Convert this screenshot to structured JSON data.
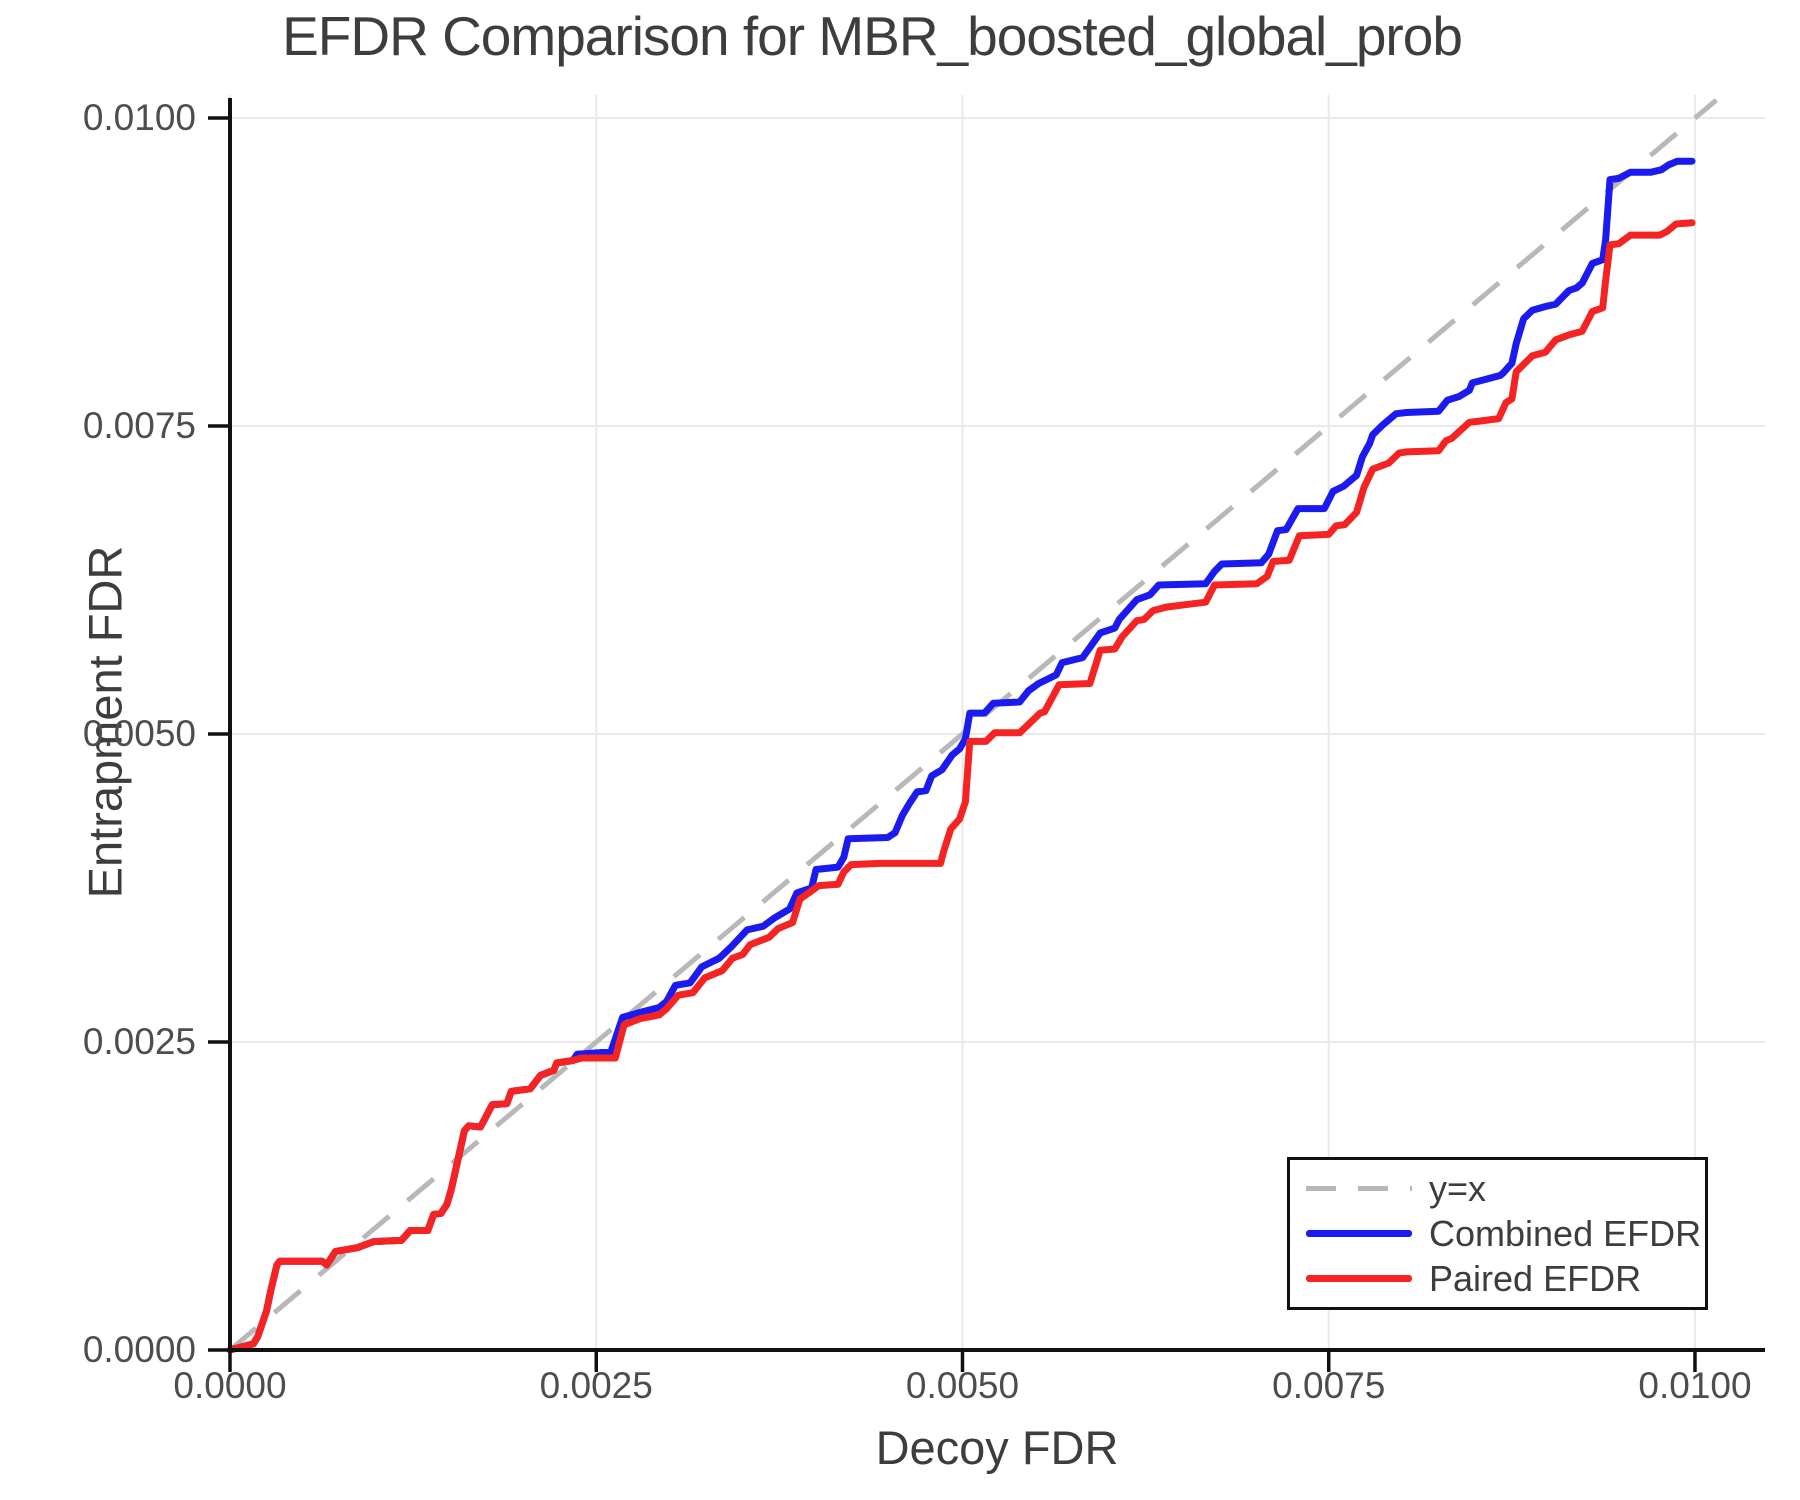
{
  "title": "EFDR Comparison for MBR_boosted_global_prob",
  "colors": {
    "background": "#ffffff",
    "grid": "#e9e9e9",
    "spine": "#111111",
    "title_text": "#3d3d3d",
    "tick_text": "#4d4d4d",
    "reference": "#b8b8b8",
    "combined": "#1b1bef",
    "paired": "#f62323"
  },
  "chart_data": {
    "type": "line",
    "title": "EFDR Comparison for MBR_boosted_global_prob",
    "xlabel": "Decoy FDR",
    "ylabel": "Entrapment FDR",
    "xlim": [
      0,
      0.010478
    ],
    "ylim": [
      0,
      0.010187
    ],
    "grid": true,
    "legend_position": "bottom-right",
    "x_ticks": {
      "values": [
        0,
        0.0025,
        0.005,
        0.0075,
        0.01
      ],
      "labels": [
        "0.0000",
        "0.0025",
        "0.0050",
        "0.0075",
        "0.0100"
      ]
    },
    "y_ticks": {
      "values": [
        0,
        0.0025,
        0.005,
        0.0075,
        0.01
      ],
      "labels": [
        "0.0000",
        "0.0025",
        "0.0050",
        "0.0075",
        "0.0100"
      ]
    },
    "reference_line": {
      "label": "y=x",
      "style": "dashed",
      "color": "#b8b8b8",
      "from": [
        0,
        0
      ],
      "to": [
        0.010146,
        0.010146
      ]
    },
    "legend": [
      {
        "label": "y=x",
        "color": "#b8b8b8",
        "dash": true
      },
      {
        "label": "Combined EFDR",
        "color": "#1b1bef",
        "dash": false
      },
      {
        "label": "Paired EFDR",
        "color": "#f62323",
        "dash": false
      }
    ],
    "series": [
      {
        "name": "Combined EFDR",
        "color": "#1b1bef",
        "points": [
          [
            0.0,
            0.0
          ],
          [
            0.00016,
            5e-05
          ],
          [
            0.00019,
            0.00011
          ],
          [
            0.00025,
            0.00032
          ],
          [
            0.00028,
            0.00049
          ],
          [
            0.00032,
            0.00069
          ],
          [
            0.00034,
            0.00072
          ],
          [
            0.00063,
            0.00072
          ],
          [
            0.00066,
            0.00069
          ],
          [
            0.00072,
            0.0008
          ],
          [
            0.00087,
            0.00083
          ],
          [
            0.00098,
            0.00088
          ],
          [
            0.00117,
            0.00089
          ],
          [
            0.00123,
            0.00097
          ],
          [
            0.00135,
            0.00097
          ],
          [
            0.00139,
            0.0011
          ],
          [
            0.00144,
            0.00111
          ],
          [
            0.00148,
            0.00118
          ],
          [
            0.00151,
            0.0013
          ],
          [
            0.0016,
            0.00178
          ],
          [
            0.00163,
            0.00182
          ],
          [
            0.00171,
            0.00181
          ],
          [
            0.00175,
            0.0019
          ],
          [
            0.00179,
            0.00199
          ],
          [
            0.00189,
            0.002
          ],
          [
            0.00192,
            0.0021
          ],
          [
            0.00205,
            0.00212
          ],
          [
            0.00212,
            0.00223
          ],
          [
            0.00221,
            0.00227
          ],
          [
            0.00223,
            0.00233
          ],
          [
            0.00234,
            0.00235
          ],
          [
            0.00237,
            0.0024
          ],
          [
            0.0026,
            0.00242
          ],
          [
            0.00268,
            0.0027
          ],
          [
            0.0028,
            0.00274
          ],
          [
            0.00293,
            0.00278
          ],
          [
            0.00298,
            0.00283
          ],
          [
            0.00304,
            0.00296
          ],
          [
            0.00314,
            0.00298
          ],
          [
            0.00322,
            0.00311
          ],
          [
            0.00334,
            0.00318
          ],
          [
            0.00342,
            0.00327
          ],
          [
            0.00353,
            0.00341
          ],
          [
            0.00364,
            0.00344
          ],
          [
            0.00372,
            0.00351
          ],
          [
            0.00382,
            0.00358
          ],
          [
            0.00387,
            0.00371
          ],
          [
            0.00397,
            0.00375
          ],
          [
            0.004,
            0.0039
          ],
          [
            0.00415,
            0.00392
          ],
          [
            0.00419,
            0.004
          ],
          [
            0.00422,
            0.00415
          ],
          [
            0.00449,
            0.00416
          ],
          [
            0.00454,
            0.0042
          ],
          [
            0.00459,
            0.00434
          ],
          [
            0.00464,
            0.00444
          ],
          [
            0.00469,
            0.00453
          ],
          [
            0.00475,
            0.00454
          ],
          [
            0.00479,
            0.00466
          ],
          [
            0.00486,
            0.00471
          ],
          [
            0.00493,
            0.00483
          ],
          [
            0.00498,
            0.00488
          ],
          [
            0.00502,
            0.00496
          ],
          [
            0.00505,
            0.00517
          ],
          [
            0.00515,
            0.00517
          ],
          [
            0.00521,
            0.00525
          ],
          [
            0.00539,
            0.00526
          ],
          [
            0.00545,
            0.00535
          ],
          [
            0.00552,
            0.00541
          ],
          [
            0.00564,
            0.00548
          ],
          [
            0.00568,
            0.00558
          ],
          [
            0.00582,
            0.00562
          ],
          [
            0.00594,
            0.00582
          ],
          [
            0.00604,
            0.00586
          ],
          [
            0.00607,
            0.00593
          ],
          [
            0.00619,
            0.00609
          ],
          [
            0.00628,
            0.00613
          ],
          [
            0.00634,
            0.00621
          ],
          [
            0.00666,
            0.00622
          ],
          [
            0.00672,
            0.00632
          ],
          [
            0.00677,
            0.00638
          ],
          [
            0.00704,
            0.00639
          ],
          [
            0.00709,
            0.00646
          ],
          [
            0.00715,
            0.00665
          ],
          [
            0.00721,
            0.00666
          ],
          [
            0.00729,
            0.00683
          ],
          [
            0.00747,
            0.00683
          ],
          [
            0.00753,
            0.00697
          ],
          [
            0.0076,
            0.00701
          ],
          [
            0.00769,
            0.0071
          ],
          [
            0.00773,
            0.00725
          ],
          [
            0.00778,
            0.00736
          ],
          [
            0.0078,
            0.00743
          ],
          [
            0.00787,
            0.00751
          ],
          [
            0.00796,
            0.0076
          ],
          [
            0.00803,
            0.00761
          ],
          [
            0.00825,
            0.00762
          ],
          [
            0.00831,
            0.00771
          ],
          [
            0.00839,
            0.00774
          ],
          [
            0.00846,
            0.00779
          ],
          [
            0.00848,
            0.00785
          ],
          [
            0.00867,
            0.00791
          ],
          [
            0.00869,
            0.00793
          ],
          [
            0.00875,
            0.00801
          ],
          [
            0.00878,
            0.00817
          ],
          [
            0.00883,
            0.00837
          ],
          [
            0.00889,
            0.00844
          ],
          [
            0.00898,
            0.00847
          ],
          [
            0.00905,
            0.00849
          ],
          [
            0.00914,
            0.0086
          ],
          [
            0.00919,
            0.00862
          ],
          [
            0.00923,
            0.00866
          ],
          [
            0.0093,
            0.00882
          ],
          [
            0.00937,
            0.00885
          ],
          [
            0.00939,
            0.00901
          ],
          [
            0.00942,
            0.0095
          ],
          [
            0.00948,
            0.00951
          ],
          [
            0.00956,
            0.00956
          ],
          [
            0.0097,
            0.00956
          ],
          [
            0.00977,
            0.00958
          ],
          [
            0.00982,
            0.00962
          ],
          [
            0.00988,
            0.00965
          ],
          [
            0.00998,
            0.00965
          ]
        ]
      },
      {
        "name": "Paired EFDR",
        "color": "#f62323",
        "points": [
          [
            0.0,
            0.0
          ],
          [
            0.00016,
            5e-05
          ],
          [
            0.00019,
            0.00011
          ],
          [
            0.00025,
            0.00032
          ],
          [
            0.00028,
            0.00049
          ],
          [
            0.00032,
            0.00069
          ],
          [
            0.00034,
            0.00072
          ],
          [
            0.00063,
            0.00072
          ],
          [
            0.00066,
            0.00069
          ],
          [
            0.00072,
            0.0008
          ],
          [
            0.00087,
            0.00083
          ],
          [
            0.00098,
            0.00088
          ],
          [
            0.00117,
            0.00089
          ],
          [
            0.00123,
            0.00097
          ],
          [
            0.00135,
            0.00097
          ],
          [
            0.00139,
            0.0011
          ],
          [
            0.00144,
            0.00111
          ],
          [
            0.00148,
            0.00118
          ],
          [
            0.00151,
            0.0013
          ],
          [
            0.0016,
            0.00178
          ],
          [
            0.00163,
            0.00182
          ],
          [
            0.00171,
            0.00181
          ],
          [
            0.00175,
            0.0019
          ],
          [
            0.00179,
            0.00199
          ],
          [
            0.00189,
            0.002
          ],
          [
            0.00192,
            0.0021
          ],
          [
            0.00205,
            0.00212
          ],
          [
            0.00212,
            0.00223
          ],
          [
            0.00221,
            0.00227
          ],
          [
            0.00223,
            0.00233
          ],
          [
            0.00234,
            0.00235
          ],
          [
            0.0024,
            0.00237
          ],
          [
            0.00263,
            0.00237
          ],
          [
            0.00269,
            0.00264
          ],
          [
            0.0028,
            0.00269
          ],
          [
            0.00293,
            0.00272
          ],
          [
            0.00298,
            0.00277
          ],
          [
            0.00306,
            0.00288
          ],
          [
            0.00316,
            0.0029
          ],
          [
            0.00324,
            0.00302
          ],
          [
            0.00336,
            0.00308
          ],
          [
            0.00343,
            0.00318
          ],
          [
            0.0035,
            0.00321
          ],
          [
            0.00355,
            0.00329
          ],
          [
            0.00368,
            0.00335
          ],
          [
            0.00374,
            0.00342
          ],
          [
            0.00384,
            0.00347
          ],
          [
            0.00389,
            0.00366
          ],
          [
            0.00402,
            0.00377
          ],
          [
            0.00415,
            0.00378
          ],
          [
            0.00419,
            0.00388
          ],
          [
            0.00424,
            0.00394
          ],
          [
            0.00444,
            0.00395
          ],
          [
            0.00485,
            0.00395
          ],
          [
            0.00487,
            0.00404
          ],
          [
            0.00492,
            0.00423
          ],
          [
            0.00498,
            0.00431
          ],
          [
            0.00502,
            0.00445
          ],
          [
            0.00505,
            0.00494
          ],
          [
            0.00516,
            0.00494
          ],
          [
            0.00522,
            0.00501
          ],
          [
            0.00539,
            0.00501
          ],
          [
            0.00547,
            0.0051
          ],
          [
            0.00553,
            0.00517
          ],
          [
            0.00556,
            0.00518
          ],
          [
            0.00566,
            0.0054
          ],
          [
            0.00587,
            0.00541
          ],
          [
            0.00594,
            0.00568
          ],
          [
            0.00604,
            0.00569
          ],
          [
            0.00609,
            0.00579
          ],
          [
            0.00619,
            0.00592
          ],
          [
            0.00624,
            0.00593
          ],
          [
            0.0063,
            0.006
          ],
          [
            0.00639,
            0.00603
          ],
          [
            0.00652,
            0.00605
          ],
          [
            0.00666,
            0.00607
          ],
          [
            0.00672,
            0.00621
          ],
          [
            0.00701,
            0.00622
          ],
          [
            0.00708,
            0.00628
          ],
          [
            0.00712,
            0.0064
          ],
          [
            0.00723,
            0.00641
          ],
          [
            0.0073,
            0.00661
          ],
          [
            0.0075,
            0.00662
          ],
          [
            0.00755,
            0.00669
          ],
          [
            0.00761,
            0.0067
          ],
          [
            0.00769,
            0.0068
          ],
          [
            0.00774,
            0.007
          ],
          [
            0.0078,
            0.00715
          ],
          [
            0.00791,
            0.0072
          ],
          [
            0.00798,
            0.00728
          ],
          [
            0.00803,
            0.00729
          ],
          [
            0.00825,
            0.0073
          ],
          [
            0.0083,
            0.00738
          ],
          [
            0.00834,
            0.0074
          ],
          [
            0.00846,
            0.00753
          ],
          [
            0.00853,
            0.00754
          ],
          [
            0.00866,
            0.00756
          ],
          [
            0.00871,
            0.00769
          ],
          [
            0.00875,
            0.00772
          ],
          [
            0.00878,
            0.00794
          ],
          [
            0.00883,
            0.008
          ],
          [
            0.00889,
            0.00807
          ],
          [
            0.00898,
            0.0081
          ],
          [
            0.00905,
            0.0082
          ],
          [
            0.00914,
            0.00824
          ],
          [
            0.00923,
            0.00827
          ],
          [
            0.0093,
            0.00843
          ],
          [
            0.00937,
            0.00846
          ],
          [
            0.00939,
            0.00868
          ],
          [
            0.00942,
            0.00897
          ],
          [
            0.00948,
            0.00898
          ],
          [
            0.00956,
            0.00905
          ],
          [
            0.00976,
            0.00905
          ],
          [
            0.00981,
            0.00908
          ],
          [
            0.00987,
            0.00914
          ],
          [
            0.00998,
            0.00915
          ]
        ]
      }
    ]
  }
}
